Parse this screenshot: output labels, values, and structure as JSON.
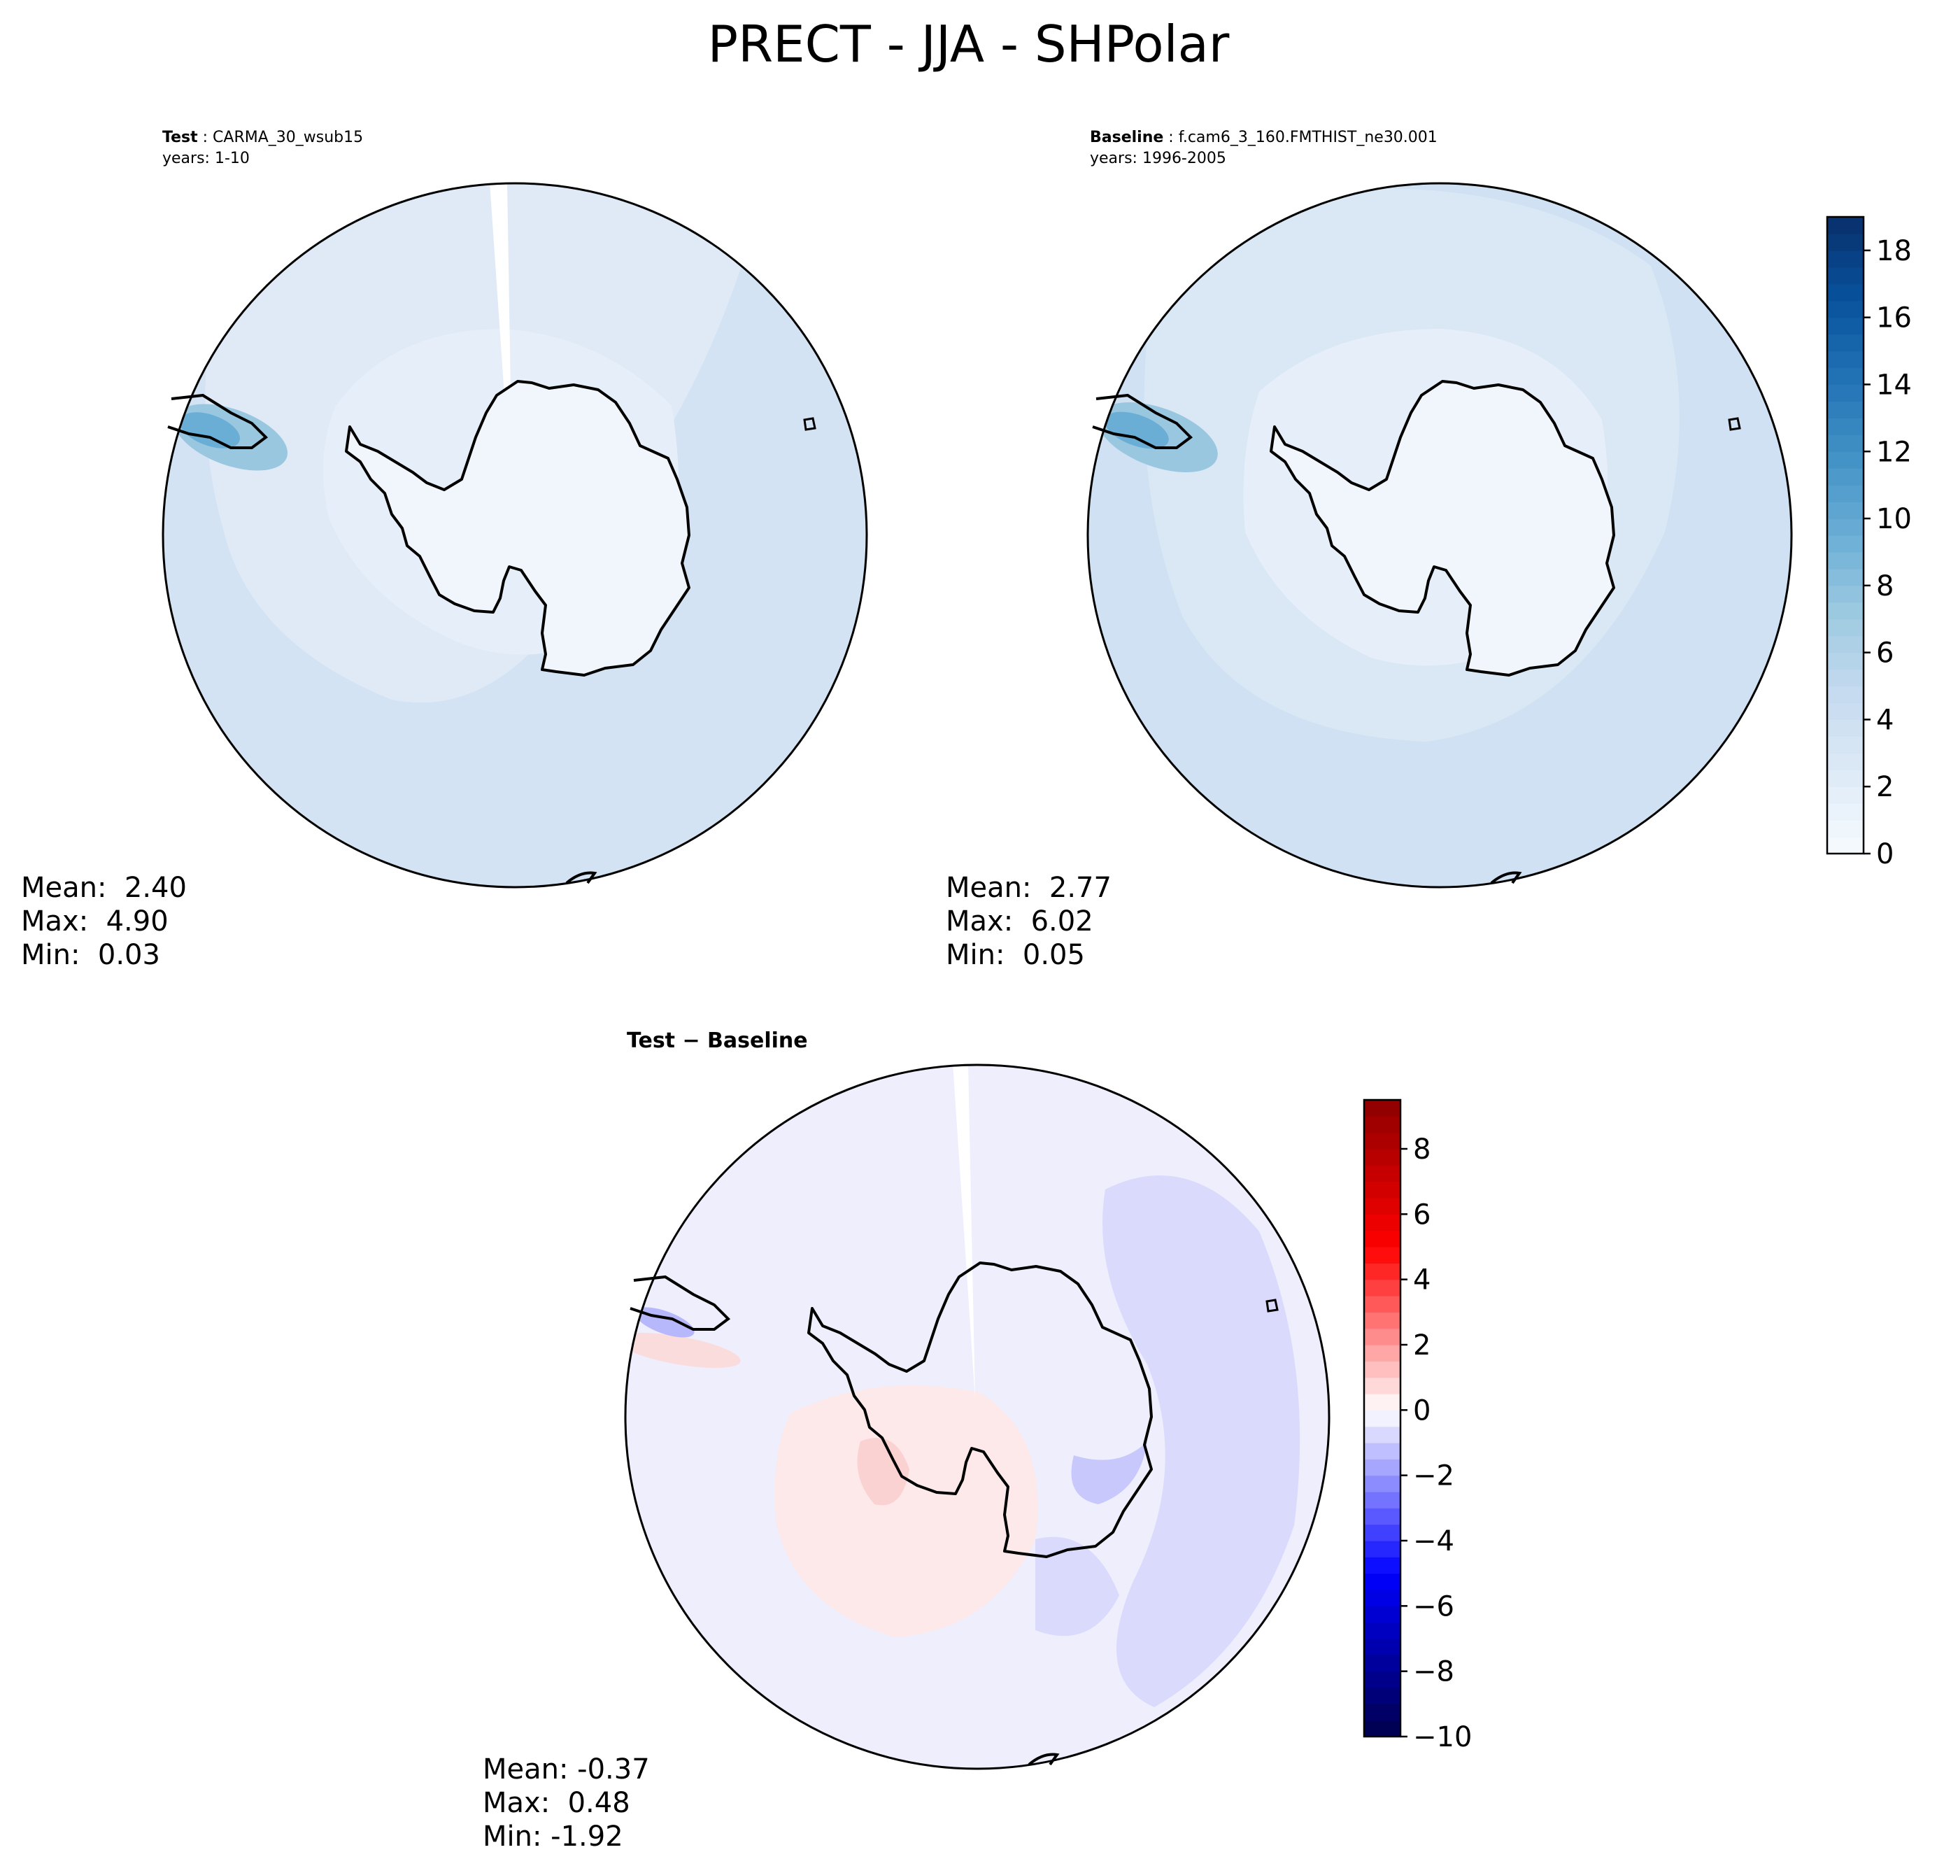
{
  "figure": {
    "suptitle": "PRECT - JJA - SHPolar"
  },
  "panels": {
    "test": {
      "label": "Test",
      "case": "CARMA_30_wsub15",
      "years": "years: 1-10",
      "stats": {
        "mean": "Mean:  2.40",
        "max": "Max:  4.90",
        "min": "Min:  0.03"
      }
    },
    "baseline": {
      "label": "Baseline",
      "case": "f.cam6_3_160.FMTHIST_ne30.001",
      "years": "years: 1996-2005",
      "stats": {
        "mean": "Mean:  2.77",
        "max": "Max:  6.02",
        "min": "Min:  0.05"
      }
    },
    "diff": {
      "label": "Test − Baseline",
      "stats": {
        "mean": "Mean: -0.37",
        "max": "Max:  0.48",
        "min": "Min: -1.92"
      }
    }
  },
  "chart_data": [
    {
      "type": "heatmap",
      "projection": "south-polar-stereographic",
      "title": "Test : CARMA_30_wsub15",
      "subtitle": "years: 1-10",
      "colormap": "Blues",
      "levels_range": [
        0,
        19
      ],
      "colorbar_ticks": [
        0,
        2,
        4,
        6,
        8,
        10,
        12,
        14,
        16,
        18
      ],
      "stats": {
        "mean": 2.4,
        "max": 4.9,
        "min": 0.03
      }
    },
    {
      "type": "heatmap",
      "projection": "south-polar-stereographic",
      "title": "Baseline : f.cam6_3_160.FMTHIST_ne30.001",
      "subtitle": "years: 1996-2005",
      "colormap": "Blues",
      "levels_range": [
        0,
        19
      ],
      "colorbar_ticks": [
        0,
        2,
        4,
        6,
        8,
        10,
        12,
        14,
        16,
        18
      ],
      "stats": {
        "mean": 2.77,
        "max": 6.02,
        "min": 0.05
      }
    },
    {
      "type": "heatmap",
      "projection": "south-polar-stereographic",
      "title": "Test − Baseline",
      "colormap": "seismic",
      "levels_range": [
        -10,
        9.5
      ],
      "colorbar_ticks": [
        -10,
        -8,
        -6,
        -4,
        -2,
        0,
        2,
        4,
        6,
        8
      ],
      "colorbar_tick_labels": [
        "−10",
        "−8",
        "−6",
        "−4",
        "−2",
        "0",
        "2",
        "4",
        "6",
        "8"
      ],
      "stats": {
        "mean": -0.37,
        "max": 0.48,
        "min": -1.92
      }
    }
  ]
}
